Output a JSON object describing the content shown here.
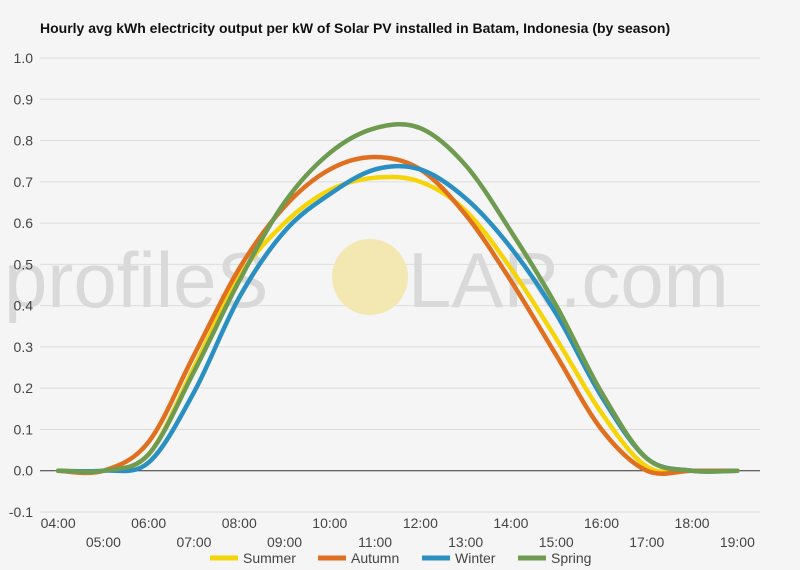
{
  "watermark": {
    "left": "profileS",
    "middle": "O",
    "right": "LAR.com",
    "sun_color": "#f3e7b2"
  },
  "chart_data": {
    "type": "line",
    "title": "Hourly avg kWh electricity output per kW of Solar PV installed in Batam, Indonesia (by season)",
    "xlabel": "",
    "ylabel": "",
    "x": [
      4,
      5,
      6,
      7,
      8,
      9,
      10,
      11,
      12,
      13,
      14,
      15,
      16,
      17,
      18,
      19
    ],
    "x_ticks": [
      {
        "x": 4,
        "label": "04:00"
      },
      {
        "x": 5,
        "label": "05:00"
      },
      {
        "x": 6,
        "label": "06:00"
      },
      {
        "x": 7,
        "label": "07:00"
      },
      {
        "x": 8,
        "label": "08:00"
      },
      {
        "x": 9,
        "label": "09:00"
      },
      {
        "x": 10,
        "label": "10:00"
      },
      {
        "x": 11,
        "label": "11:00"
      },
      {
        "x": 12,
        "label": "12:00"
      },
      {
        "x": 13,
        "label": "13:00"
      },
      {
        "x": 14,
        "label": "14:00"
      },
      {
        "x": 15,
        "label": "15:00"
      },
      {
        "x": 16,
        "label": "16:00"
      },
      {
        "x": 17,
        "label": "17:00"
      },
      {
        "x": 18,
        "label": "18:00"
      },
      {
        "x": 19,
        "label": "19:00"
      }
    ],
    "y_ticks": [
      "1.0",
      "0.9",
      "0.8",
      "0.7",
      "0.6",
      "0.5",
      "0.4",
      "0.3",
      "0.2",
      "0.1",
      "0.0",
      "-0.1"
    ],
    "xlim": [
      3.6,
      19.5
    ],
    "ylim": [
      -0.1,
      1.0
    ],
    "grid": true,
    "legend_position": "bottom",
    "series": [
      {
        "name": "Summer",
        "color": "#f5d50a",
        "values": [
          0.0,
          0.0,
          0.04,
          0.25,
          0.47,
          0.6,
          0.68,
          0.71,
          0.7,
          0.63,
          0.49,
          0.32,
          0.14,
          0.01,
          0.0,
          0.0
        ]
      },
      {
        "name": "Autumn",
        "color": "#e07020",
        "values": [
          0.0,
          0.0,
          0.07,
          0.28,
          0.49,
          0.64,
          0.73,
          0.76,
          0.73,
          0.62,
          0.46,
          0.28,
          0.1,
          0.0,
          0.0,
          0.0
        ]
      },
      {
        "name": "Winter",
        "color": "#2a8fc1",
        "values": [
          0.0,
          0.0,
          0.02,
          0.19,
          0.42,
          0.58,
          0.67,
          0.73,
          0.73,
          0.66,
          0.54,
          0.38,
          0.18,
          0.03,
          0.0,
          0.0
        ]
      },
      {
        "name": "Spring",
        "color": "#6f9b50",
        "values": [
          0.0,
          0.0,
          0.04,
          0.24,
          0.46,
          0.65,
          0.77,
          0.83,
          0.83,
          0.74,
          0.58,
          0.4,
          0.19,
          0.03,
          0.0,
          0.0
        ]
      }
    ]
  }
}
